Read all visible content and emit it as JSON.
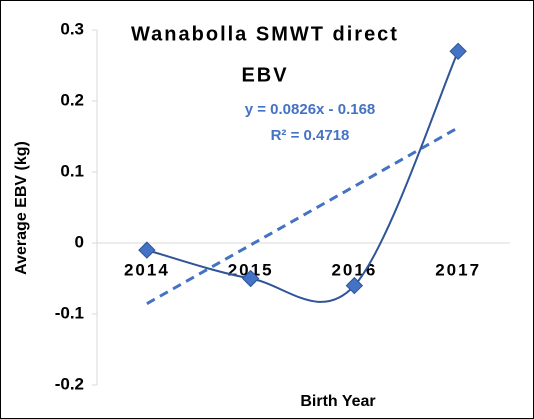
{
  "chart_data": {
    "type": "line",
    "title": [
      "Wanabolla SMWT direct",
      "EBV"
    ],
    "x_label": "Birth Year",
    "y_label": "Average EBV (kg)",
    "categories": [
      "2014",
      "2015",
      "2016",
      "2017"
    ],
    "series": [
      {
        "name": "Average EBV",
        "color": "#2f5597",
        "marker_color": "#4472c4",
        "values": [
          -0.01,
          -0.05,
          -0.06,
          0.27
        ]
      }
    ],
    "trendline": {
      "label": "y = 0.0826x - 0.168",
      "r2_label": "R² = 0.4718",
      "slope": 0.0826,
      "intercept": -0.168,
      "color": "#4472c4"
    },
    "ylim": [
      -0.2,
      0.3
    ],
    "yticks": [
      -0.2,
      -0.1,
      0,
      0.1,
      0.2,
      0.3
    ],
    "smooth": true
  }
}
